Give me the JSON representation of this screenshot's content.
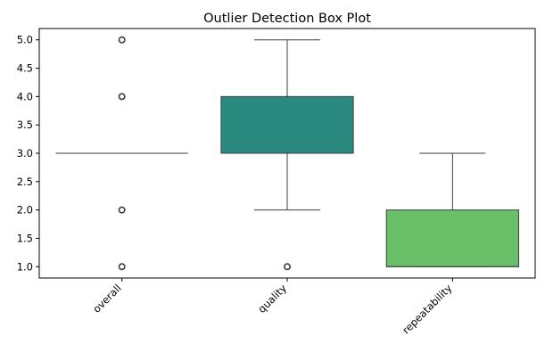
{
  "chart_data": {
    "type": "box",
    "title": "Outlier Detection Box Plot",
    "xlabel": "",
    "ylabel": "",
    "ylim": [
      0.8,
      5.2
    ],
    "yticks": [
      1.0,
      1.5,
      2.0,
      2.5,
      3.0,
      3.5,
      4.0,
      4.5,
      5.0
    ],
    "ytick_labels": [
      "1.0",
      "1.5",
      "2.0",
      "2.5",
      "3.0",
      "3.5",
      "4.0",
      "4.5",
      "5.0"
    ],
    "grid": false,
    "legend": "none",
    "categories": [
      "overall",
      "quality",
      "repeatability"
    ],
    "boxes": [
      {
        "category": "overall",
        "whisker_low": 3.0,
        "q1": 3.0,
        "median": 3.0,
        "q3": 3.0,
        "whisker_high": 3.0,
        "outliers": [
          1.0,
          2.0,
          4.0,
          5.0
        ],
        "color": "#3b5a8c"
      },
      {
        "category": "quality",
        "whisker_low": 2.0,
        "q1": 3.0,
        "median": 3.0,
        "q3": 4.0,
        "whisker_high": 5.0,
        "outliers": [
          1.0
        ],
        "color": "#2b8a80"
      },
      {
        "category": "repeatability",
        "whisker_low": 1.0,
        "q1": 1.0,
        "median": 1.0,
        "q3": 2.0,
        "whisker_high": 3.0,
        "outliers": [],
        "color": "#6abf69"
      }
    ]
  }
}
